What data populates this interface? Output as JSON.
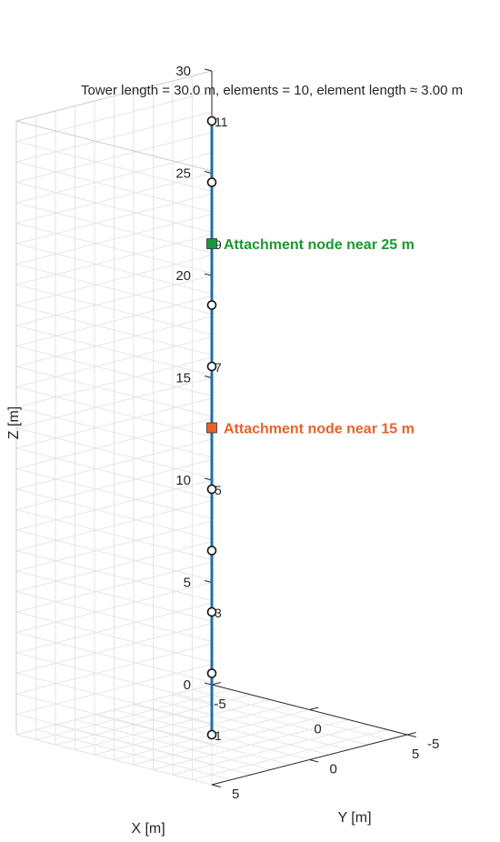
{
  "chart_data": {
    "type": "line",
    "title": "",
    "xlabel": "X [m]",
    "ylabel": "Y [m]",
    "zlabel": "Z [m]",
    "xlim": [
      -5,
      5
    ],
    "ylim": [
      -5,
      5
    ],
    "zlim": [
      0,
      30
    ],
    "x_ticks": [
      "-5",
      "0",
      "5"
    ],
    "y_ticks": [
      "-5",
      "0",
      "5"
    ],
    "z_ticks": [
      "0",
      "5",
      "10",
      "15",
      "20",
      "25",
      "30"
    ],
    "grid": true,
    "annotation": "Tower length = 30.0 m, elements = 10, element length ≈ 3.00 m",
    "series": [
      {
        "x": [
          0,
          0,
          0,
          0,
          0,
          0,
          0,
          0,
          0,
          0,
          0
        ],
        "y": [
          0,
          0,
          0,
          0,
          0,
          0,
          0,
          0,
          0,
          0,
          0
        ],
        "z": [
          0,
          3,
          6,
          9,
          12,
          15,
          18,
          21,
          24,
          27,
          30
        ],
        "color": "#1f6fa8"
      }
    ],
    "node_labels": [
      {
        "node": 1,
        "text": "1"
      },
      {
        "node": 3,
        "text": "3"
      },
      {
        "node": 5,
        "text": "5"
      },
      {
        "node": 7,
        "text": "7"
      },
      {
        "node": 9,
        "text": "9"
      },
      {
        "node": 11,
        "text": "11"
      }
    ],
    "attachments": [
      {
        "label": "Attachment node near 25 m",
        "z": 24,
        "color": "#1a9641",
        "text_color": "#1a9a2e"
      },
      {
        "label": "Attachment node near 15 m",
        "z": 15,
        "color": "#e8622a",
        "text_color": "#e8622a"
      }
    ]
  }
}
